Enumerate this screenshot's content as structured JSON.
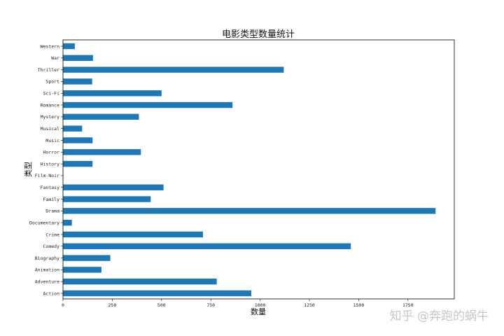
{
  "chart_data": {
    "type": "bar",
    "orientation": "horizontal",
    "title": "电影类型数量统计",
    "xlabel": "数量",
    "ylabel": "类型",
    "xlim": [
      0,
      1985
    ],
    "xticks": [
      0,
      250,
      500,
      750,
      1000,
      1250,
      1500,
      1750
    ],
    "grid": false,
    "bar_color": "#1f77b4",
    "categories": [
      "Action",
      "Adventure",
      "Animation",
      "Biography",
      "Comedy",
      "Crime",
      "Documentary",
      "Drama",
      "Family",
      "Fantasy",
      "Film-Noir",
      "History",
      "Horror",
      "Music",
      "Musical",
      "Mystery",
      "Romance",
      "Sci-Fi",
      "Sport",
      "Thriller",
      "War",
      "Western"
    ],
    "values": [
      955,
      780,
      195,
      240,
      1460,
      710,
      45,
      1890,
      445,
      510,
      1,
      150,
      395,
      150,
      97,
      385,
      860,
      500,
      148,
      1120,
      152,
      60
    ]
  },
  "watermark": "知乎 @奔跑的蜗牛"
}
